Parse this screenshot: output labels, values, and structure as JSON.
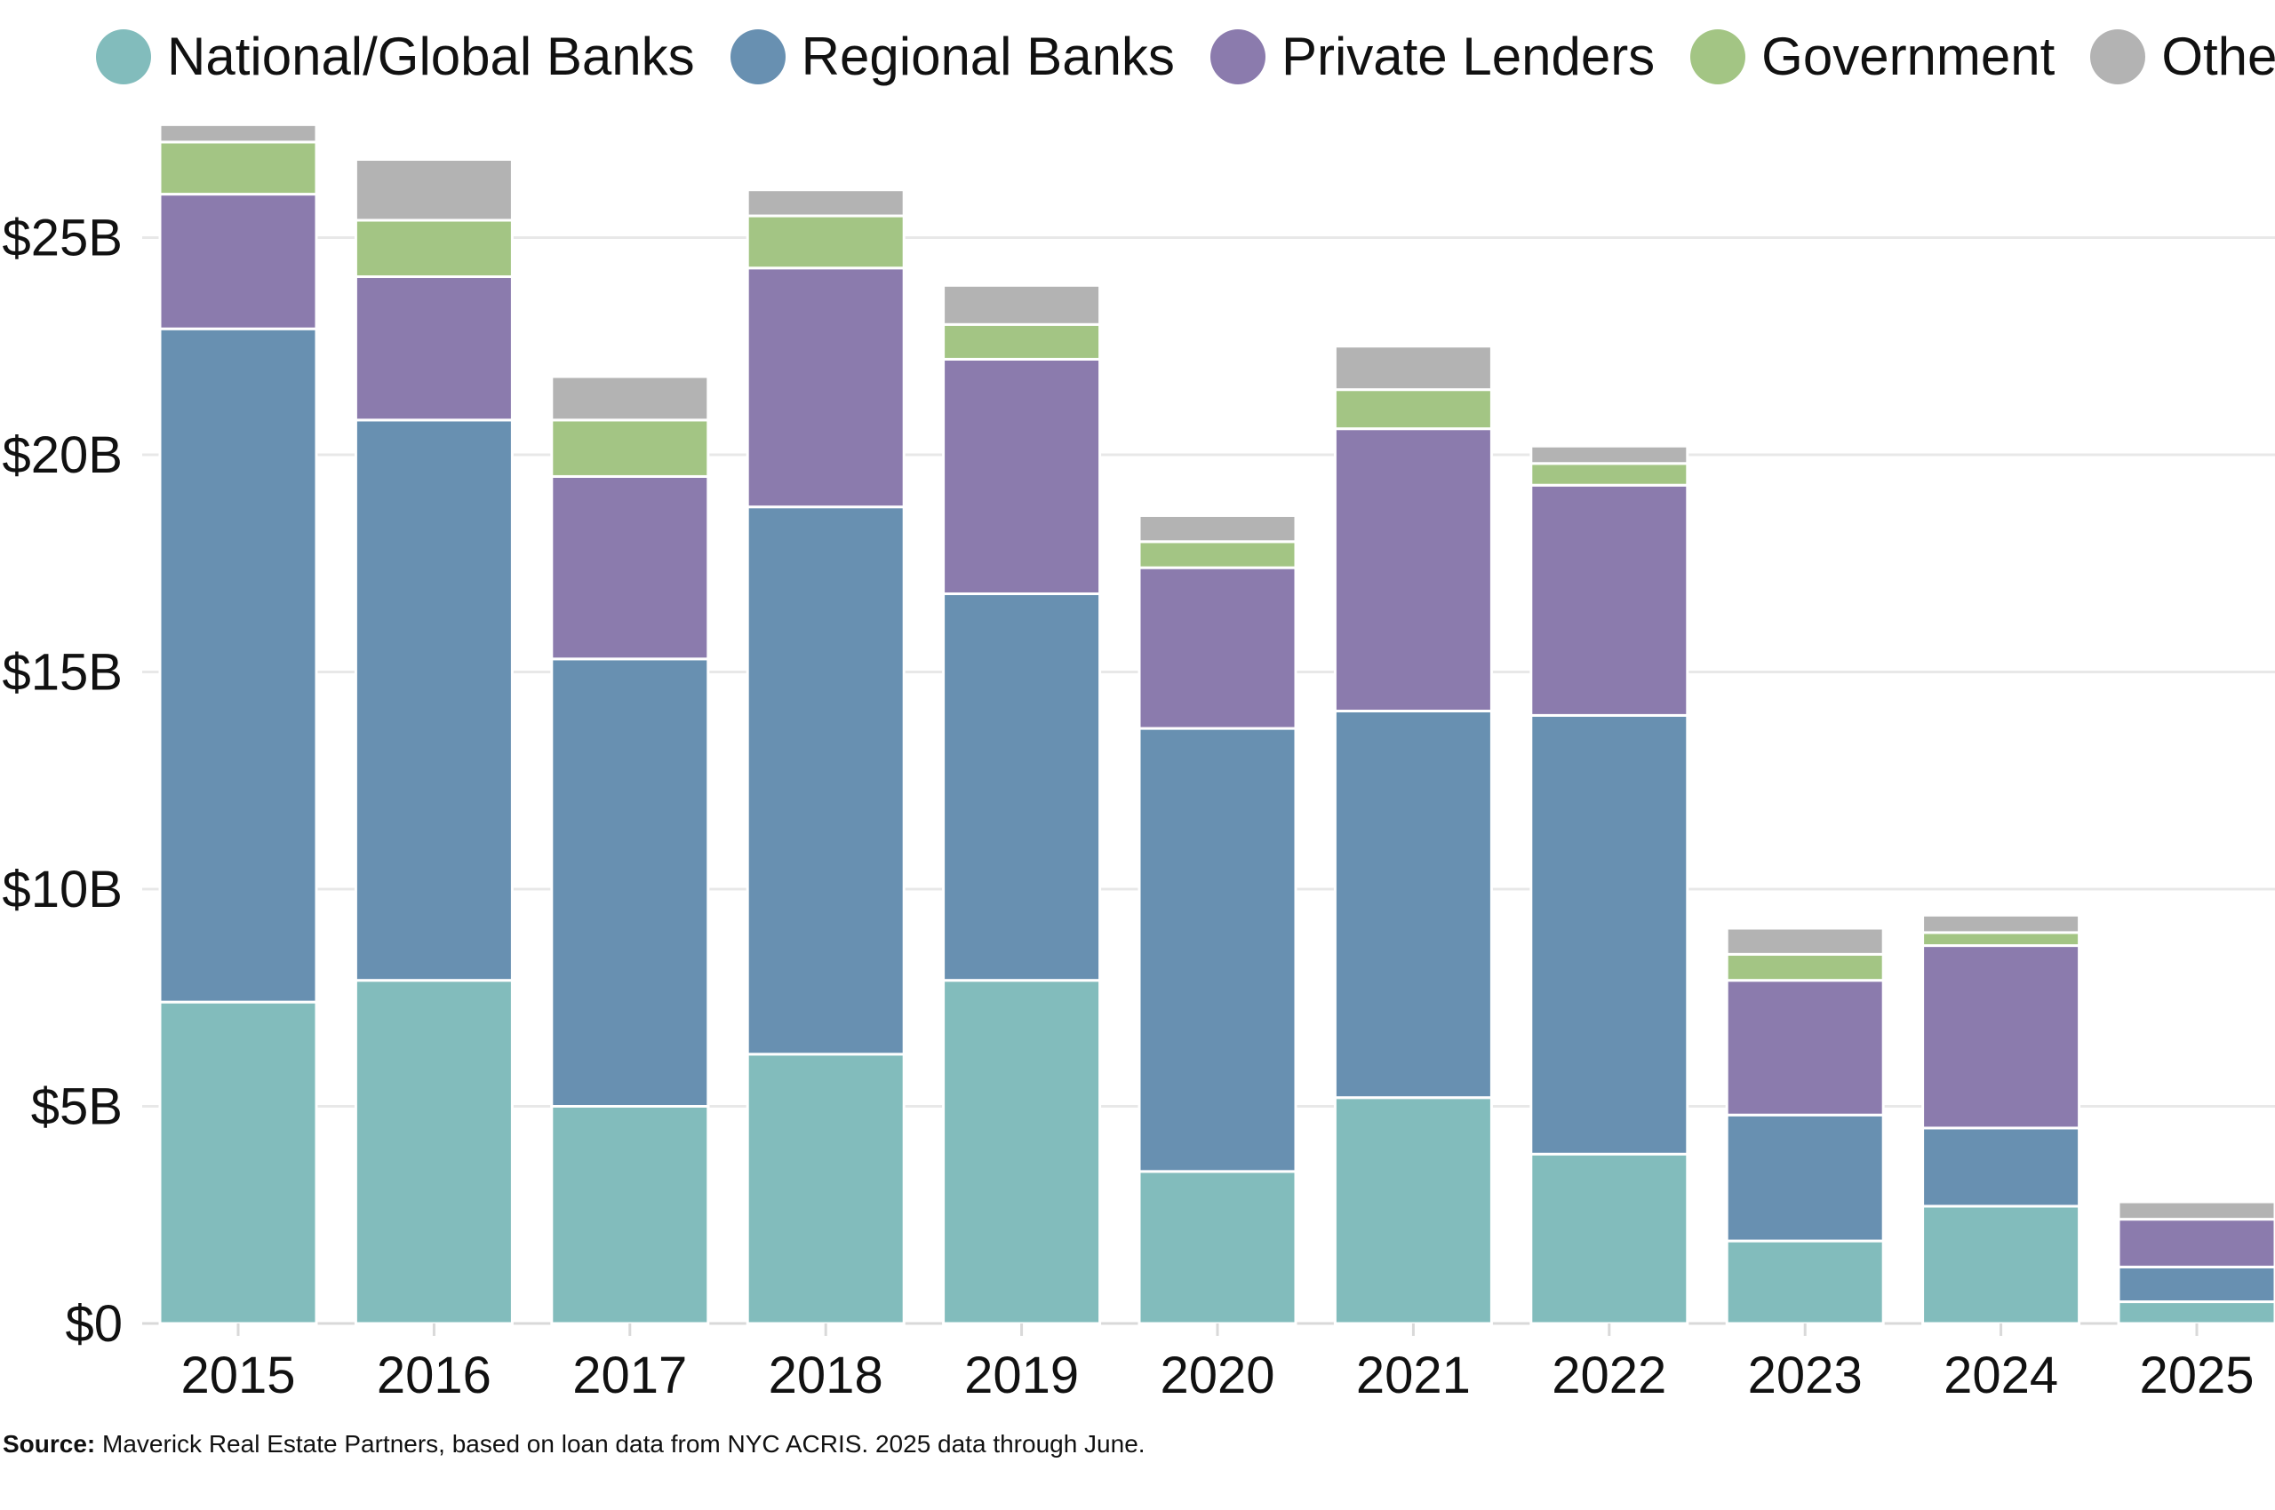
{
  "chart_data": {
    "type": "bar",
    "stacked": true,
    "title": "",
    "xlabel": "",
    "ylabel": "",
    "categories": [
      "2015",
      "2016",
      "2017",
      "2018",
      "2019",
      "2020",
      "2021",
      "2022",
      "2023",
      "2024",
      "2025"
    ],
    "series": [
      {
        "name": "National/Global Banks",
        "color": "#82bcbc",
        "values": [
          7.4,
          7.9,
          5.0,
          6.2,
          7.9,
          3.5,
          5.2,
          3.9,
          1.9,
          2.7,
          0.5
        ]
      },
      {
        "name": "Regional Banks",
        "color": "#6890b1",
        "values": [
          15.5,
          12.9,
          10.3,
          12.6,
          8.9,
          10.2,
          8.9,
          10.1,
          2.9,
          1.8,
          0.8
        ]
      },
      {
        "name": "Private Lenders",
        "color": "#8b7bad",
        "values": [
          3.1,
          3.3,
          4.2,
          5.5,
          5.4,
          3.7,
          6.5,
          5.3,
          3.1,
          4.2,
          1.1
        ]
      },
      {
        "name": "Government",
        "color": "#a3c584",
        "values": [
          1.2,
          1.3,
          1.3,
          1.2,
          0.8,
          0.6,
          0.9,
          0.5,
          0.6,
          0.3,
          0.0
        ]
      },
      {
        "name": "Other",
        "color": "#b3b3b3",
        "values": [
          0.4,
          1.4,
          1.0,
          0.6,
          0.9,
          0.6,
          1.0,
          0.4,
          0.6,
          0.4,
          0.4
        ]
      }
    ],
    "ylim": [
      0,
      27.5
    ],
    "yticks": [
      0,
      5,
      10,
      15,
      20,
      25
    ],
    "ytick_labels": [
      "$0",
      "$5B",
      "$10B",
      "$15B",
      "$20B",
      "$25B"
    ],
    "grid": true,
    "legend_position": "top"
  },
  "source": {
    "label": "Source:",
    "text": "Maverick Real Estate Partners, based on loan data from NYC ACRIS. 2025 data through June."
  }
}
